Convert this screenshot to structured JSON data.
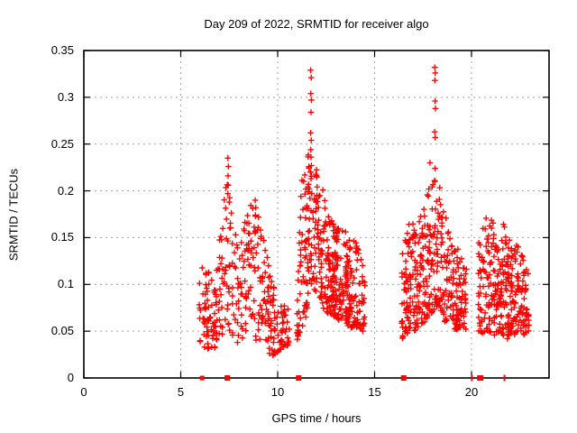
{
  "chart_data": {
    "type": "scatter",
    "title": "Day 209 of 2022, SRMTID for receiver algo",
    "xlabel": "GPS time / hours",
    "ylabel": "SRMTID / TECUs",
    "xlim": [
      0,
      24
    ],
    "ylim": [
      0,
      0.35
    ],
    "grid": true,
    "legend": "none",
    "marker": {
      "shape": "plus",
      "color": "#ff0000",
      "size": 7
    },
    "axis_color": "#000000",
    "grid_color": "#9e9e9e",
    "bg_color": "#ffffff",
    "x_ticks": [
      {
        "v": 0,
        "label": "0"
      },
      {
        "v": 5,
        "label": "5"
      },
      {
        "v": 10,
        "label": "10"
      },
      {
        "v": 15,
        "label": "15"
      },
      {
        "v": 20,
        "label": "20"
      }
    ],
    "y_ticks": [
      {
        "v": 0,
        "label": "0"
      },
      {
        "v": 0.05,
        "label": "0.05"
      },
      {
        "v": 0.1,
        "label": "0.1"
      },
      {
        "v": 0.15,
        "label": "0.15"
      },
      {
        "v": 0.2,
        "label": "0.2"
      },
      {
        "v": 0.25,
        "label": "0.25"
      },
      {
        "v": 0.3,
        "label": "0.3"
      },
      {
        "v": 0.35,
        "label": "0.35"
      }
    ],
    "seed": 7,
    "clusters": [
      {
        "name": "pass-1",
        "t_range": [
          5.95,
          10.6
        ],
        "count": 340,
        "envelope": [
          [
            5.95,
            0.04,
            0.1
          ],
          [
            6.1,
            0.035,
            0.125
          ],
          [
            6.35,
            0.03,
            0.12
          ],
          [
            6.6,
            0.028,
            0.105
          ],
          [
            7.0,
            0.04,
            0.15
          ],
          [
            7.45,
            0.05,
            0.23
          ],
          [
            7.7,
            0.045,
            0.17
          ],
          [
            8.0,
            0.035,
            0.14
          ],
          [
            8.45,
            0.05,
            0.185
          ],
          [
            8.85,
            0.04,
            0.19
          ],
          [
            9.2,
            0.04,
            0.155
          ],
          [
            9.6,
            0.022,
            0.12
          ],
          [
            10.0,
            0.028,
            0.08
          ],
          [
            10.6,
            0.035,
            0.075
          ]
        ]
      },
      {
        "name": "pass-2",
        "t_range": [
          11.0,
          14.5
        ],
        "count": 420,
        "envelope": [
          [
            11.0,
            0.04,
            0.075
          ],
          [
            11.2,
            0.05,
            0.205
          ],
          [
            11.45,
            0.06,
            0.235
          ],
          [
            11.7,
            0.1,
            0.245
          ],
          [
            11.95,
            0.09,
            0.245
          ],
          [
            12.2,
            0.08,
            0.215
          ],
          [
            12.5,
            0.07,
            0.185
          ],
          [
            12.9,
            0.065,
            0.165
          ],
          [
            13.3,
            0.06,
            0.16
          ],
          [
            13.7,
            0.055,
            0.155
          ],
          [
            14.1,
            0.05,
            0.15
          ],
          [
            14.5,
            0.05,
            0.12
          ]
        ]
      },
      {
        "name": "pass-3",
        "t_range": [
          16.4,
          19.75
        ],
        "count": 380,
        "envelope": [
          [
            16.4,
            0.04,
            0.13
          ],
          [
            16.8,
            0.05,
            0.17
          ],
          [
            17.2,
            0.05,
            0.16
          ],
          [
            17.6,
            0.06,
            0.19
          ],
          [
            18.0,
            0.07,
            0.215
          ],
          [
            18.3,
            0.08,
            0.21
          ],
          [
            18.6,
            0.06,
            0.18
          ],
          [
            18.9,
            0.06,
            0.15
          ],
          [
            19.2,
            0.05,
            0.14
          ],
          [
            19.5,
            0.055,
            0.135
          ],
          [
            19.75,
            0.05,
            0.125
          ]
        ]
      },
      {
        "name": "pass-4",
        "t_range": [
          20.35,
          23.0
        ],
        "count": 300,
        "envelope": [
          [
            20.35,
            0.05,
            0.15
          ],
          [
            20.6,
            0.045,
            0.18
          ],
          [
            20.9,
            0.05,
            0.165
          ],
          [
            21.2,
            0.045,
            0.175
          ],
          [
            21.5,
            0.05,
            0.17
          ],
          [
            21.8,
            0.04,
            0.16
          ],
          [
            22.1,
            0.05,
            0.15
          ],
          [
            22.4,
            0.04,
            0.15
          ],
          [
            22.7,
            0.045,
            0.13
          ],
          [
            23.0,
            0.05,
            0.11
          ]
        ]
      }
    ],
    "feature_points": [
      [
        7.43,
        0.235
      ],
      [
        7.46,
        0.226
      ],
      [
        7.44,
        0.216
      ],
      [
        7.45,
        0.206
      ],
      [
        7.43,
        0.197
      ],
      [
        8.84,
        0.19
      ],
      [
        8.87,
        0.182
      ],
      [
        8.85,
        0.173
      ],
      [
        11.7,
        0.329
      ],
      [
        11.73,
        0.321
      ],
      [
        11.71,
        0.304
      ],
      [
        11.74,
        0.297
      ],
      [
        11.72,
        0.284
      ],
      [
        11.7,
        0.262
      ],
      [
        11.73,
        0.254
      ],
      [
        11.71,
        0.244
      ],
      [
        11.72,
        0.236
      ],
      [
        11.74,
        0.227
      ],
      [
        11.7,
        0.22
      ],
      [
        11.72,
        0.213
      ],
      [
        18.1,
        0.332
      ],
      [
        18.13,
        0.326
      ],
      [
        18.11,
        0.318
      ],
      [
        18.12,
        0.296
      ],
      [
        18.14,
        0.288
      ],
      [
        18.1,
        0.263
      ],
      [
        18.13,
        0.257
      ],
      [
        17.86,
        0.23
      ],
      [
        18.12,
        0.224
      ],
      [
        18.11,
        0.21
      ]
    ],
    "zero_points": [
      {
        "t": 6.1,
        "w": 5,
        "h": 5
      },
      {
        "t": 7.4,
        "w": 6,
        "h": 6
      },
      {
        "t": 11.08,
        "w": 6,
        "h": 6
      },
      {
        "t": 16.5,
        "w": 6,
        "h": 6
      },
      {
        "t": 20.02,
        "w": 2,
        "h": 7
      },
      {
        "t": 20.45,
        "w": 7,
        "h": 6
      },
      {
        "t": 21.7,
        "w": 2,
        "h": 7
      }
    ]
  }
}
